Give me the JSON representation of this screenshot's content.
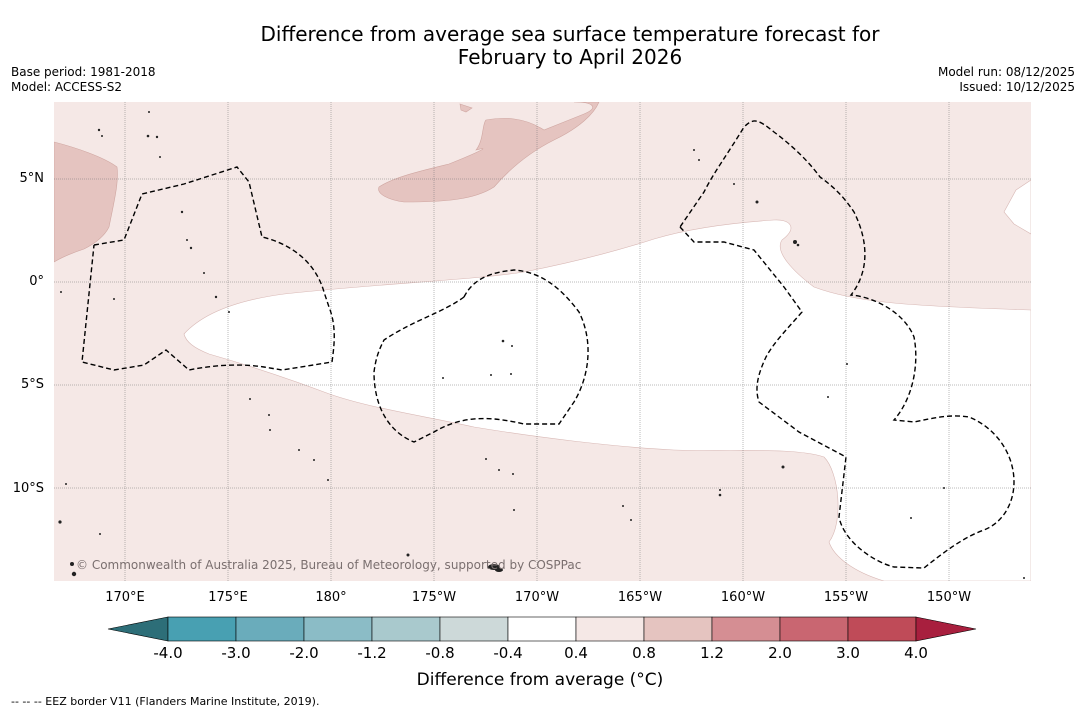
{
  "title_line1": "Difference from average sea surface temperature forecast for",
  "title_line2": "February to April 2026",
  "base_period": "Base period: 1981-2018",
  "model": "Model: ACCESS-S2",
  "model_run": "Model run: 08/12/2025",
  "issued": "Issued: 10/12/2025",
  "lat_ticks": [
    "5°N",
    "0°",
    "5°S",
    "10°S"
  ],
  "lon_ticks": [
    "170°E",
    "175°E",
    "180°",
    "175°W",
    "170°W",
    "165°W",
    "160°W",
    "155°W",
    "150°W"
  ],
  "copyright": "© Commonwealth of Australia 2025, Bureau of Meteorology, supported by COSPPac",
  "colorbar": {
    "labels": [
      "-4.0",
      "-3.0",
      "-2.0",
      "-1.2",
      "-0.8",
      "-0.4",
      "0.4",
      "0.8",
      "1.2",
      "2.0",
      "3.0",
      "4.0"
    ],
    "colors": [
      "#2d6e78",
      "#48a0b2",
      "#6aacbb",
      "#8bbcc6",
      "#a9c9cd",
      "#cdd9d9",
      "#ffffff",
      "#f5e8e6",
      "#e5c4c0",
      "#d58e93",
      "#c96671",
      "#bf4b58",
      "#a81f3e"
    ],
    "title": "Difference from average (°C)"
  },
  "footer": "--  --  -- EEZ border V11 (Flanders Marine Institute, 2019)."
}
